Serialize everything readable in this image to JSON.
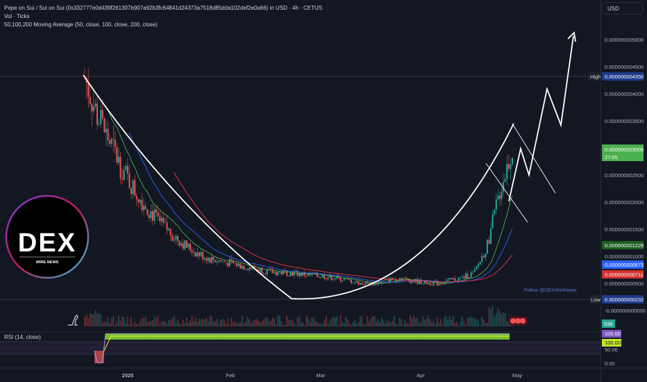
{
  "header": {
    "title": "Pepe on Sui / Sui on Sui (0x332777e0d439f261307b907a92b3fc64841d24373a7518d85dda102def2e0a66) in USD · 4h · CETUS",
    "volume_label": "Vol · Ticks",
    "ma_label": "50,100,200 Moving Average (50, close, 100, close, 200, close)",
    "currency": "USD"
  },
  "watermark": {
    "text": "Follow @DEXWireNews"
  },
  "logo": {
    "big": "DEX",
    "small": "WIRE NEWS"
  },
  "price_axis": {
    "ticks": [
      "0.000000005000",
      "0.000000004500",
      "0.000000004000",
      "0.000000003500",
      "0.000000002500",
      "0.000000002000",
      "0.000000001500",
      "0.000000001000",
      "0.000000000500",
      "-0.000000000000"
    ],
    "high_label": "High",
    "high_value": "0.000000004350",
    "low_label": "Low",
    "low_value": "0.000000000232",
    "last_price": "0.000000003006",
    "countdown": "27:05",
    "ma50": "0.000000001228",
    "ma100": "0.000000000873",
    "ma200": "0.000000000711",
    "volume_value": "536"
  },
  "time_axis": [
    "2025",
    "Feb",
    "Mar",
    "Apr",
    "May"
  ],
  "rsi": {
    "label": "RSI (14, close)",
    "value_a": "100.00",
    "value_b": "100.00",
    "tick_50": "50.00",
    "tick_0": "0.00"
  },
  "colors": {
    "background": "#131722",
    "up": "#26a69a",
    "down": "#ef5350",
    "ma50": "#4caf50",
    "ma100": "#2962ff",
    "ma200": "#f23645",
    "rsi": "#7e57c2"
  },
  "chart_data": {
    "type": "candlestick",
    "price_unit": "USD",
    "high": 4.35e-09,
    "low": 2.32e-10,
    "last": 3.006e-09,
    "moving_averages": [
      {
        "name": "MA50",
        "value": 1.228e-09
      },
      {
        "name": "MA100",
        "value": 8.73e-10
      },
      {
        "name": "MA200",
        "value": 7.11e-10
      }
    ],
    "x_ticks": [
      "2025",
      "Feb",
      "Mar",
      "Apr",
      "May"
    ],
    "y_ticks": [
      5e-09,
      4.5e-09,
      4e-09,
      3.5e-09,
      2.5e-09,
      2e-09,
      1.5e-09,
      1e-09,
      5e-10,
      0.0
    ],
    "close_path": [
      4.3e-09,
      3.6e-09,
      3.1e-09,
      2.6e-09,
      2.2e-09,
      1.9e-09,
      1.6e-09,
      1.4e-09,
      1.2e-09,
      1.05e-09,
      9.5e-10,
      9e-10,
      8.5e-10,
      8e-10,
      7.5e-10,
      7e-10,
      7e-10,
      6.8e-10,
      6.5e-10,
      6.3e-10,
      6e-10,
      5.5e-10,
      5e-10,
      5e-10,
      5.5e-10,
      6e-10,
      5.5e-10,
      5.2e-10,
      5e-10,
      5.5e-10,
      6e-10,
      7e-10,
      1.2e-09,
      2.2e-09,
      3e-09
    ],
    "rsi_value": 100.0
  }
}
